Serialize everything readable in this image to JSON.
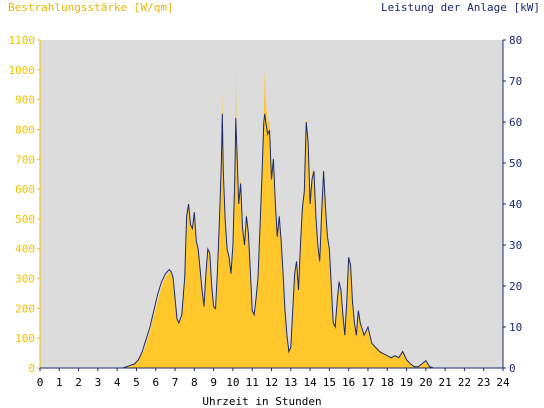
{
  "chart_data": {
    "type": "area",
    "ylabel_left": "Bestrahlungsstärke [W/qm]",
    "ylabel_right": "Leistung der Anlage [kW]",
    "xlabel": "Uhrzeit in Stunden",
    "xlim": [
      0,
      24
    ],
    "ylim_left": [
      0,
      1100
    ],
    "ylim_right": [
      0,
      80
    ],
    "x_ticks": [
      "0",
      "1",
      "2",
      "3",
      "4",
      "5",
      "6",
      "7",
      "8",
      "9",
      "10",
      "11",
      "12",
      "13",
      "14",
      "15",
      "16",
      "17",
      "18",
      "19",
      "20",
      "21",
      "22",
      "23",
      "24"
    ],
    "y_ticks_left": [
      "0",
      "100",
      "200",
      "300",
      "400",
      "500",
      "600",
      "700",
      "800",
      "900",
      "1000",
      "1100"
    ],
    "y_ticks_right": [
      "0",
      "10",
      "20",
      "30",
      "40",
      "50",
      "60",
      "70",
      "80"
    ],
    "grid": false,
    "colors": {
      "irradiance_fill": "#ffc72c",
      "power_line": "#1c2a6e",
      "plot_bg": "#dcdcdc",
      "left_axis": "#f2c200",
      "right_axis": "#1c2a6e"
    },
    "series": [
      {
        "role": "irradiance",
        "axis": "left",
        "points": [
          [
            0,
            0
          ],
          [
            4.2,
            0
          ],
          [
            4.5,
            3
          ],
          [
            4.8,
            10
          ],
          [
            5,
            20
          ],
          [
            5.2,
            40
          ],
          [
            5.4,
            60
          ],
          [
            5.6,
            100
          ],
          [
            5.8,
            150
          ],
          [
            6,
            200
          ],
          [
            6.2,
            250
          ],
          [
            6.4,
            290
          ],
          [
            6.6,
            315
          ],
          [
            6.8,
            325
          ],
          [
            6.9,
            300
          ],
          [
            7,
            240
          ],
          [
            7.1,
            170
          ],
          [
            7.2,
            150
          ],
          [
            7.35,
            170
          ],
          [
            7.5,
            300
          ],
          [
            7.6,
            500
          ],
          [
            7.7,
            555
          ],
          [
            7.8,
            480
          ],
          [
            7.9,
            470
          ],
          [
            8,
            520
          ],
          [
            8.1,
            430
          ],
          [
            8.2,
            400
          ],
          [
            8.3,
            330
          ],
          [
            8.4,
            260
          ],
          [
            8.5,
            200
          ],
          [
            8.6,
            320
          ],
          [
            8.7,
            400
          ],
          [
            8.8,
            390
          ],
          [
            8.9,
            280
          ],
          [
            9,
            210
          ],
          [
            9.1,
            200
          ],
          [
            9.2,
            330
          ],
          [
            9.3,
            500
          ],
          [
            9.4,
            700
          ],
          [
            9.45,
            930
          ],
          [
            9.5,
            680
          ],
          [
            9.6,
            500
          ],
          [
            9.7,
            400
          ],
          [
            9.8,
            380
          ],
          [
            9.9,
            320
          ],
          [
            10,
            420
          ],
          [
            10.1,
            650
          ],
          [
            10.15,
            1000
          ],
          [
            10.2,
            760
          ],
          [
            10.3,
            560
          ],
          [
            10.4,
            640
          ],
          [
            10.5,
            480
          ],
          [
            10.6,
            420
          ],
          [
            10.7,
            520
          ],
          [
            10.8,
            470
          ],
          [
            10.9,
            330
          ],
          [
            11,
            200
          ],
          [
            11.1,
            180
          ],
          [
            11.2,
            240
          ],
          [
            11.3,
            300
          ],
          [
            11.4,
            480
          ],
          [
            11.5,
            640
          ],
          [
            11.6,
            840
          ],
          [
            11.65,
            1000
          ],
          [
            11.7,
            900
          ],
          [
            11.8,
            820
          ],
          [
            11.9,
            830
          ],
          [
            12,
            640
          ],
          [
            12.1,
            720
          ],
          [
            12.2,
            560
          ],
          [
            12.3,
            450
          ],
          [
            12.4,
            520
          ],
          [
            12.5,
            440
          ],
          [
            12.6,
            320
          ],
          [
            12.7,
            200
          ],
          [
            12.8,
            120
          ],
          [
            12.9,
            60
          ],
          [
            13,
            75
          ],
          [
            13.1,
            200
          ],
          [
            13.2,
            330
          ],
          [
            13.3,
            360
          ],
          [
            13.4,
            260
          ],
          [
            13.5,
            420
          ],
          [
            13.6,
            550
          ],
          [
            13.7,
            600
          ],
          [
            13.8,
            840
          ],
          [
            13.9,
            760
          ],
          [
            14,
            560
          ],
          [
            14.1,
            650
          ],
          [
            14.2,
            680
          ],
          [
            14.3,
            520
          ],
          [
            14.4,
            420
          ],
          [
            14.5,
            370
          ],
          [
            14.6,
            530
          ],
          [
            14.7,
            670
          ],
          [
            14.8,
            540
          ],
          [
            14.9,
            440
          ],
          [
            15,
            400
          ],
          [
            15.1,
            280
          ],
          [
            15.2,
            160
          ],
          [
            15.3,
            140
          ],
          [
            15.4,
            230
          ],
          [
            15.5,
            300
          ],
          [
            15.6,
            270
          ],
          [
            15.7,
            180
          ],
          [
            15.8,
            120
          ],
          [
            15.9,
            220
          ],
          [
            16,
            370
          ],
          [
            16.1,
            340
          ],
          [
            16.2,
            220
          ],
          [
            16.3,
            160
          ],
          [
            16.4,
            120
          ],
          [
            16.5,
            200
          ],
          [
            16.6,
            150
          ],
          [
            16.8,
            110
          ],
          [
            17,
            130
          ],
          [
            17.2,
            80
          ],
          [
            17.4,
            70
          ],
          [
            17.6,
            60
          ],
          [
            17.8,
            50
          ],
          [
            18,
            40
          ],
          [
            18.2,
            35
          ],
          [
            18.4,
            40
          ],
          [
            18.6,
            35
          ],
          [
            18.8,
            60
          ],
          [
            19,
            30
          ],
          [
            19.2,
            15
          ],
          [
            19.4,
            5
          ],
          [
            19.6,
            5
          ],
          [
            19.8,
            15
          ],
          [
            20,
            25
          ],
          [
            20.2,
            5
          ],
          [
            20.4,
            0
          ],
          [
            24,
            0
          ]
        ]
      },
      {
        "role": "power",
        "axis": "right",
        "points": [
          [
            0,
            0
          ],
          [
            4.3,
            0
          ],
          [
            4.6,
            0.5
          ],
          [
            4.9,
            1
          ],
          [
            5.1,
            2
          ],
          [
            5.3,
            4
          ],
          [
            5.5,
            7
          ],
          [
            5.7,
            10
          ],
          [
            5.9,
            14
          ],
          [
            6.1,
            18
          ],
          [
            6.3,
            21
          ],
          [
            6.5,
            23
          ],
          [
            6.7,
            24
          ],
          [
            6.8,
            23.5
          ],
          [
            6.9,
            22
          ],
          [
            7,
            17
          ],
          [
            7.1,
            12
          ],
          [
            7.2,
            11
          ],
          [
            7.35,
            13
          ],
          [
            7.5,
            22
          ],
          [
            7.6,
            37
          ],
          [
            7.7,
            40
          ],
          [
            7.8,
            35
          ],
          [
            7.9,
            34
          ],
          [
            8,
            38
          ],
          [
            8.1,
            31
          ],
          [
            8.2,
            29
          ],
          [
            8.3,
            24
          ],
          [
            8.4,
            19
          ],
          [
            8.5,
            15
          ],
          [
            8.6,
            23
          ],
          [
            8.7,
            29
          ],
          [
            8.8,
            28
          ],
          [
            8.9,
            20
          ],
          [
            9,
            15
          ],
          [
            9.1,
            14.5
          ],
          [
            9.2,
            24
          ],
          [
            9.3,
            36
          ],
          [
            9.4,
            50
          ],
          [
            9.45,
            62
          ],
          [
            9.5,
            48
          ],
          [
            9.6,
            36
          ],
          [
            9.7,
            29
          ],
          [
            9.8,
            27
          ],
          [
            9.9,
            23
          ],
          [
            10,
            30
          ],
          [
            10.1,
            47
          ],
          [
            10.15,
            61
          ],
          [
            10.2,
            54
          ],
          [
            10.3,
            40
          ],
          [
            10.4,
            45
          ],
          [
            10.5,
            34
          ],
          [
            10.6,
            30
          ],
          [
            10.7,
            37
          ],
          [
            10.8,
            33
          ],
          [
            10.9,
            24
          ],
          [
            11,
            14
          ],
          [
            11.1,
            13
          ],
          [
            11.2,
            17
          ],
          [
            11.3,
            22
          ],
          [
            11.4,
            34
          ],
          [
            11.5,
            46
          ],
          [
            11.6,
            60
          ],
          [
            11.65,
            62
          ],
          [
            11.7,
            60
          ],
          [
            11.8,
            57
          ],
          [
            11.9,
            58
          ],
          [
            12,
            46
          ],
          [
            12.1,
            51
          ],
          [
            12.2,
            40
          ],
          [
            12.3,
            32
          ],
          [
            12.4,
            37
          ],
          [
            12.5,
            31
          ],
          [
            12.6,
            23
          ],
          [
            12.7,
            14
          ],
          [
            12.8,
            8
          ],
          [
            12.9,
            4
          ],
          [
            13,
            5
          ],
          [
            13.1,
            14
          ],
          [
            13.2,
            23
          ],
          [
            13.3,
            26
          ],
          [
            13.4,
            19
          ],
          [
            13.5,
            30
          ],
          [
            13.6,
            39
          ],
          [
            13.7,
            43
          ],
          [
            13.8,
            60
          ],
          [
            13.9,
            55
          ],
          [
            14,
            40
          ],
          [
            14.1,
            46
          ],
          [
            14.2,
            48
          ],
          [
            14.3,
            37
          ],
          [
            14.4,
            30
          ],
          [
            14.5,
            26
          ],
          [
            14.6,
            38
          ],
          [
            14.7,
            48
          ],
          [
            14.8,
            39
          ],
          [
            14.9,
            32
          ],
          [
            15,
            29
          ],
          [
            15.1,
            20
          ],
          [
            15.2,
            11
          ],
          [
            15.3,
            10
          ],
          [
            15.4,
            16
          ],
          [
            15.5,
            21
          ],
          [
            15.6,
            19
          ],
          [
            15.7,
            13
          ],
          [
            15.8,
            8
          ],
          [
            15.9,
            16
          ],
          [
            16,
            27
          ],
          [
            16.1,
            25
          ],
          [
            16.2,
            16
          ],
          [
            16.3,
            11
          ],
          [
            16.4,
            8
          ],
          [
            16.5,
            14
          ],
          [
            16.6,
            11
          ],
          [
            16.8,
            8
          ],
          [
            17,
            10
          ],
          [
            17.2,
            6
          ],
          [
            17.4,
            5
          ],
          [
            17.6,
            4
          ],
          [
            17.8,
            3.5
          ],
          [
            18,
            3
          ],
          [
            18.2,
            2.5
          ],
          [
            18.4,
            3
          ],
          [
            18.6,
            2.5
          ],
          [
            18.8,
            4
          ],
          [
            19,
            2
          ],
          [
            19.2,
            1
          ],
          [
            19.4,
            0.3
          ],
          [
            19.6,
            0.3
          ],
          [
            19.8,
            1
          ],
          [
            20,
            1.8
          ],
          [
            20.2,
            0.3
          ],
          [
            20.4,
            0
          ],
          [
            24,
            0
          ]
        ]
      }
    ]
  }
}
